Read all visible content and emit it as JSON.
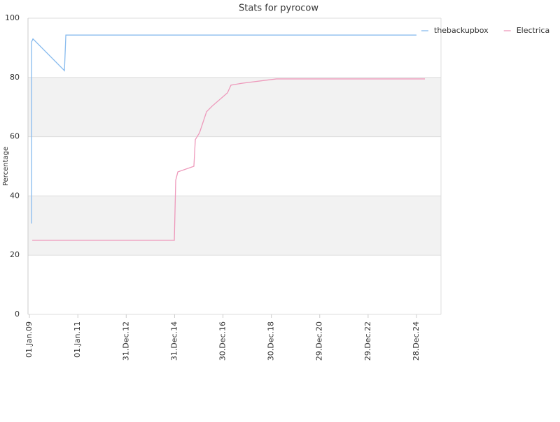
{
  "chart_data": {
    "type": "line",
    "title": "Stats for pyrocow",
    "y_label": "Percentage",
    "xlim": [
      "2008-12-10",
      "2026-01-02"
    ],
    "xticks": [
      {
        "value": "2009-01-01",
        "label": "01.Jan.09"
      },
      {
        "value": "2011-01-01",
        "label": "01.Jan.11"
      },
      {
        "value": "2012-12-31",
        "label": "31.Dec.12"
      },
      {
        "value": "2014-12-31",
        "label": "31.Dec.14"
      },
      {
        "value": "2016-12-30",
        "label": "30.Dec.16"
      },
      {
        "value": "2018-12-30",
        "label": "30.Dec.18"
      },
      {
        "value": "2020-12-29",
        "label": "29.Dec.20"
      },
      {
        "value": "2022-12-29",
        "label": "29.Dec.22"
      },
      {
        "value": "2024-12-28",
        "label": "28.Dec.24"
      }
    ],
    "ylim": [
      0,
      100
    ],
    "yticks": [
      0,
      20,
      40,
      60,
      80,
      100
    ],
    "grid": true,
    "legend": "top-right",
    "series": [
      {
        "name": "thebackupbox",
        "color": "#88bbee",
        "x": [
          "2009-02-02",
          "2009-02-02",
          "2009-02-23",
          "2010-06-13",
          "2010-07-04",
          "2024-12-28"
        ],
        "values": [
          30.7,
          92,
          93,
          82.3,
          94.3,
          94.3
        ]
      },
      {
        "name": "Electrica",
        "color": "#ee99bb",
        "x": [
          "2009-02-12",
          "2014-12-27",
          "2015-01-17",
          "2015-02-18",
          "2015-10-18",
          "2015-11-09",
          "2016-01-11",
          "2016-04-26",
          "2016-07-19",
          "2017-03-08",
          "2017-04-30",
          "2017-10-06",
          "2019-03-18",
          "2025-05-04"
        ],
        "values": [
          25,
          25,
          45.3,
          48.1,
          50,
          59,
          61.3,
          68.4,
          70.3,
          74.8,
          77.4,
          78,
          79.5,
          79.5
        ]
      }
    ]
  }
}
